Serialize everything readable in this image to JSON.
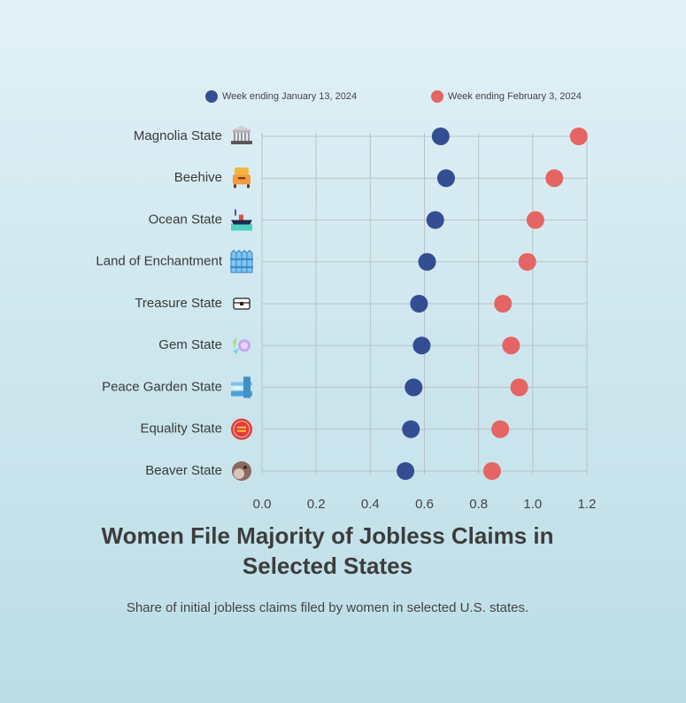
{
  "chart_data": {
    "type": "dot",
    "title": "Women File Majority of Jobless Claims in Selected States",
    "subtitle": "Share of initial jobless claims filed by women in selected U.S. states.",
    "xlabel": "",
    "ylabel": "",
    "xlim": [
      0,
      1.2
    ],
    "xticks": [
      "0.0",
      "0.2",
      "0.4",
      "0.6",
      "0.8",
      "1.0",
      "1.2"
    ],
    "grid": true,
    "legend_position": "top",
    "categories": [
      "Magnolia State",
      "Beehive",
      "Ocean State",
      "Land of Enchantment",
      "Treasure State",
      "Gem State",
      "Peace Garden State",
      "Equality State",
      "Beaver State"
    ],
    "category_icons": [
      "columned-building-icon",
      "beehive-icon",
      "ship-icon",
      "fence-icon",
      "treasure-chest-icon",
      "gem-icon",
      "garden-arch-icon",
      "equality-badge-icon",
      "beaver-icon"
    ],
    "series": [
      {
        "name": "Week ending January 13, 2024",
        "color": "#344e93",
        "values": [
          0.66,
          0.68,
          0.64,
          0.61,
          0.58,
          0.59,
          0.56,
          0.55,
          0.53
        ]
      },
      {
        "name": "Week ending February 3, 2024",
        "color": "#e46563",
        "values": [
          1.17,
          1.08,
          1.01,
          0.98,
          0.89,
          0.92,
          0.95,
          0.88,
          0.85
        ]
      }
    ]
  }
}
